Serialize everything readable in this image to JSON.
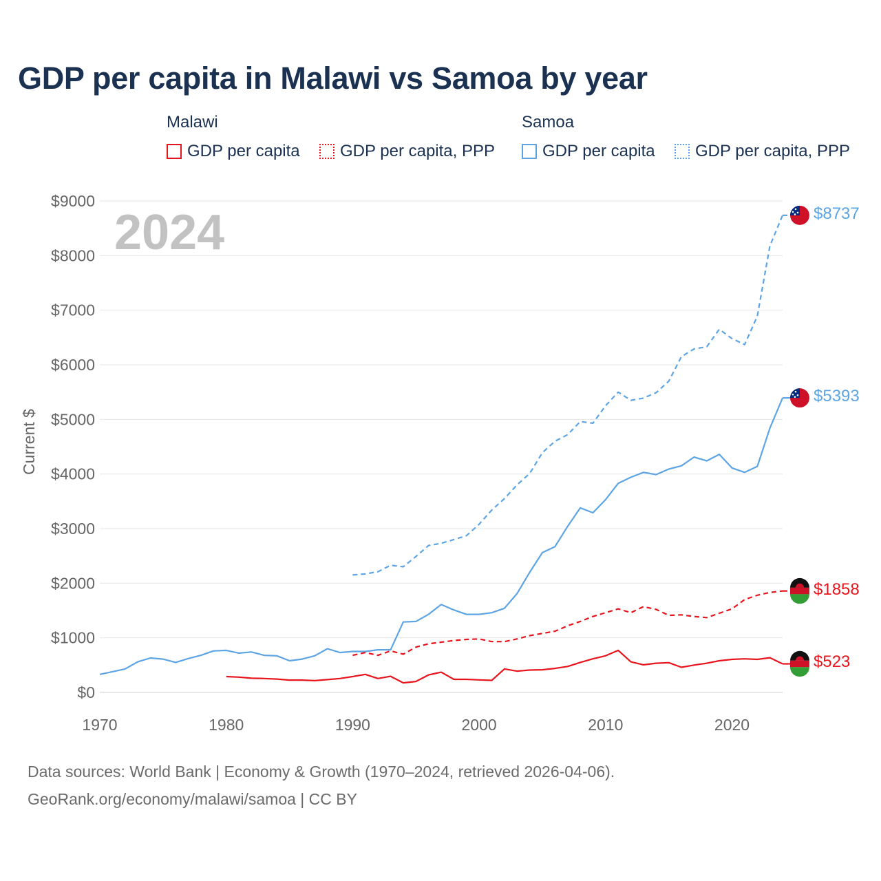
{
  "title": "GDP per capita in Malawi vs Samoa by year",
  "year_label": "2024",
  "legend": {
    "groups": [
      {
        "country": "Malawi",
        "color": "#e8141c",
        "items": [
          {
            "label": "GDP per capita",
            "style": "solid"
          },
          {
            "label": "GDP per capita, PPP",
            "style": "dotted"
          }
        ]
      },
      {
        "country": "Samoa",
        "color": "#5ca4e4",
        "items": [
          {
            "label": "GDP per capita",
            "style": "solid"
          },
          {
            "label": "GDP per capita, PPP",
            "style": "dotted"
          }
        ]
      }
    ]
  },
  "end_labels": {
    "samoa_ppp": "$8737",
    "samoa_gdp": "$5393",
    "malawi_ppp": "$1858",
    "malawi_gdp": "$523"
  },
  "source": {
    "line1": "Data sources: World Bank | Economy & Growth (1970–2024, retrieved 2026-04-06).",
    "line2": "GeoRank.org/economy/malawi/samoa | CC BY"
  },
  "chart_data": {
    "type": "line",
    "title": "GDP per capita in Malawi vs Samoa by year",
    "xlabel": "",
    "ylabel": "Current $",
    "xlim": [
      1970,
      2024
    ],
    "ylim": [
      0,
      9000
    ],
    "x_ticks": [
      1970,
      1980,
      1990,
      2000,
      2010,
      2020
    ],
    "y_ticks": [
      0,
      1000,
      2000,
      3000,
      4000,
      5000,
      6000,
      7000,
      8000,
      9000
    ],
    "y_tick_labels": [
      "$0",
      "$1000",
      "$2000",
      "$3000",
      "$4000",
      "$5000",
      "$6000",
      "$7000",
      "$8000",
      "$9000"
    ],
    "x_tick_labels": [
      "1970",
      "1980",
      "1990",
      "2000",
      "2010",
      "2020"
    ],
    "grid": true,
    "series": [
      {
        "name": "Samoa GDP per capita",
        "country": "Samoa",
        "color": "#5ca4e4",
        "dash": false,
        "start_year": 1970,
        "values": [
          330,
          380,
          430,
          560,
          630,
          610,
          550,
          620,
          680,
          760,
          770,
          720,
          740,
          680,
          670,
          580,
          610,
          670,
          800,
          730,
          750,
          750,
          780,
          780,
          1290,
          1300,
          1430,
          1610,
          1510,
          1430,
          1430,
          1460,
          1540,
          1810,
          2200,
          2560,
          2670,
          3040,
          3380,
          3290,
          3530,
          3830,
          3940,
          4030,
          3990,
          4090,
          4150,
          4310,
          4240,
          4360,
          4110,
          4030,
          4140,
          4840,
          5393
        ]
      },
      {
        "name": "Samoa GDP per capita, PPP",
        "country": "Samoa",
        "color": "#5ca4e4",
        "dash": true,
        "start_year": 1990,
        "values": [
          2150,
          2170,
          2210,
          2330,
          2300,
          2490,
          2690,
          2730,
          2800,
          2870,
          3080,
          3340,
          3550,
          3800,
          4010,
          4390,
          4600,
          4720,
          4960,
          4930,
          5250,
          5500,
          5350,
          5390,
          5490,
          5700,
          6150,
          6290,
          6330,
          6650,
          6480,
          6370,
          6890,
          8180,
          8737
        ]
      },
      {
        "name": "Malawi GDP per capita",
        "country": "Malawi",
        "color": "#e8141c",
        "dash": false,
        "start_year": 1980,
        "values": [
          290,
          280,
          260,
          255,
          245,
          225,
          225,
          215,
          235,
          255,
          290,
          330,
          255,
          295,
          175,
          200,
          320,
          370,
          240,
          240,
          230,
          220,
          430,
          390,
          410,
          415,
          440,
          475,
          550,
          615,
          670,
          770,
          560,
          505,
          535,
          545,
          460,
          500,
          535,
          580,
          605,
          615,
          605,
          635,
          523
        ]
      },
      {
        "name": "Malawi GDP per capita, PPP",
        "country": "Malawi",
        "color": "#e8141c",
        "dash": true,
        "start_year": 1990,
        "values": [
          680,
          730,
          680,
          760,
          700,
          830,
          890,
          920,
          950,
          970,
          980,
          930,
          930,
          980,
          1040,
          1080,
          1120,
          1220,
          1300,
          1390,
          1460,
          1530,
          1460,
          1570,
          1520,
          1410,
          1420,
          1390,
          1370,
          1450,
          1530,
          1700,
          1780,
          1830,
          1858
        ]
      }
    ]
  }
}
